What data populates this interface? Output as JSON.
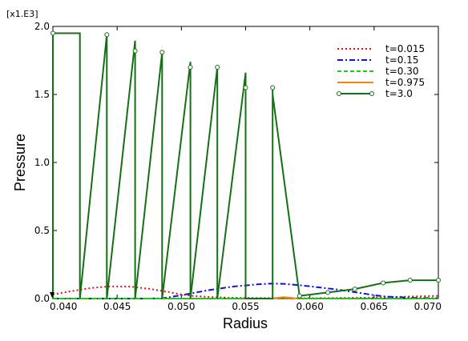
{
  "chart_data": {
    "type": "line",
    "multiplier": "[x1.E3]",
    "xlabel": "Radius",
    "ylabel": "Pressure",
    "xlim": [
      0.04,
      0.07
    ],
    "ylim": [
      0.0,
      2.0
    ],
    "x_ticks": [
      "0.040",
      "0.045",
      "0.050",
      "0.055",
      "0.060",
      "0.065",
      "0.070"
    ],
    "y_ticks": [
      "0.0",
      "0.5",
      "1.0",
      "1.5",
      "2.0"
    ],
    "grid": false,
    "legend_position": "top-right",
    "series": [
      {
        "name": "t=0.015",
        "color": "#e01010",
        "style": "dotted",
        "x": [
          0.04,
          0.0415,
          0.043,
          0.0445,
          0.046,
          0.0475,
          0.049,
          0.05,
          0.051,
          0.0525,
          0.054,
          0.056,
          0.058,
          0.06,
          0.062,
          0.064,
          0.066,
          0.068,
          0.07
        ],
        "y": [
          0.03,
          0.055,
          0.078,
          0.09,
          0.088,
          0.072,
          0.048,
          0.03,
          0.018,
          0.01,
          0.006,
          0.004,
          0.003,
          0.003,
          0.004,
          0.006,
          0.01,
          0.015,
          0.02
        ]
      },
      {
        "name": "t=0.15",
        "color": "#1010e0",
        "style": "dashdot",
        "x": [
          0.04,
          0.044,
          0.047,
          0.0485,
          0.05,
          0.052,
          0.054,
          0.056,
          0.057,
          0.058,
          0.059,
          0.06,
          0.062,
          0.064,
          0.065,
          0.066,
          0.068,
          0.07
        ],
        "y": [
          0.0,
          0.0,
          0.0,
          0.002,
          0.025,
          0.06,
          0.088,
          0.105,
          0.11,
          0.108,
          0.1,
          0.09,
          0.068,
          0.04,
          0.025,
          0.014,
          0.006,
          0.003
        ]
      },
      {
        "name": "t=0.30",
        "color": "#10d010",
        "style": "dashed",
        "x": [
          0.04,
          0.042,
          0.044,
          0.046,
          0.048,
          0.05,
          0.052,
          0.054,
          0.056,
          0.058,
          0.06,
          0.062,
          0.064,
          0.066,
          0.068,
          0.07
        ],
        "y": [
          0.0,
          0.0,
          0.0,
          0.0,
          0.0,
          0.0,
          0.0,
          0.0,
          0.0,
          0.0,
          0.0,
          0.0,
          0.0,
          0.0,
          0.0,
          0.0
        ]
      },
      {
        "name": "t=0.975",
        "color": "#ff7f0e",
        "style": "solid",
        "x": [
          0.057,
          0.0575,
          0.058,
          0.0585,
          0.059
        ],
        "y": [
          0.0,
          0.006,
          0.01,
          0.006,
          0.0
        ]
      },
      {
        "name": "t=3.0",
        "color": "#157015",
        "style": "solid-markers",
        "x": [
          0.04,
          0.04,
          0.0421,
          0.0421,
          0.0421,
          0.0442,
          0.0442,
          0.0442,
          0.0464,
          0.0464,
          0.0464,
          0.0485,
          0.0485,
          0.0485,
          0.0507,
          0.0507,
          0.0507,
          0.0528,
          0.0528,
          0.0528,
          0.055,
          0.055,
          0.055,
          0.0571,
          0.0571,
          0.0571,
          0.0571,
          0.0592,
          0.0614,
          0.0635,
          0.0657,
          0.0678,
          0.07
        ],
        "y": [
          0.0,
          1.95,
          1.95,
          0.0,
          0.0,
          1.94,
          1.895,
          0.0,
          1.895,
          1.82,
          0.0,
          1.81,
          1.74,
          0.0,
          1.74,
          1.7,
          0.0,
          1.7,
          1.66,
          0.0,
          1.66,
          1.55,
          0.0,
          0.0,
          1.55,
          1.5,
          1.5,
          0.02,
          0.045,
          0.07,
          0.115,
          0.135,
          0.135
        ],
        "markers_x": [
          0.04,
          0.0442,
          0.0464,
          0.0485,
          0.0507,
          0.0528,
          0.055,
          0.0571,
          0.0592,
          0.0614,
          0.0635,
          0.0657,
          0.0678,
          0.07
        ],
        "markers_y": [
          1.95,
          1.94,
          1.82,
          1.81,
          1.7,
          1.7,
          1.55,
          1.55,
          0.02,
          0.045,
          0.07,
          0.115,
          0.135,
          0.135
        ]
      }
    ]
  }
}
